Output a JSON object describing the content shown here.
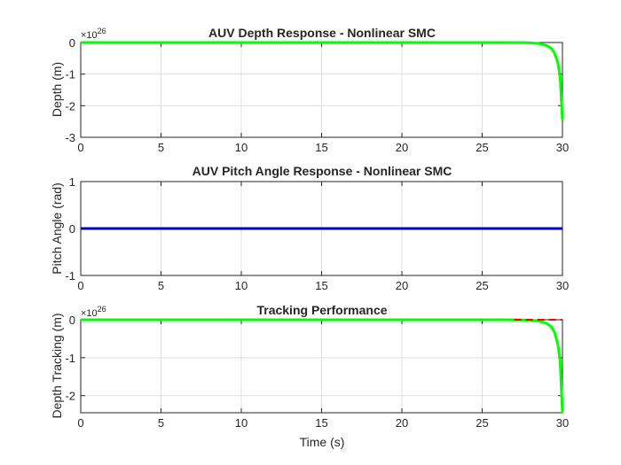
{
  "chart_data": [
    {
      "type": "line",
      "title": "AUV Depth Response - Nonlinear SMC",
      "xlabel": "",
      "ylabel": "Depth (m)",
      "y_exponent_label": "×10",
      "y_exponent": "26",
      "xlim": [
        0,
        30
      ],
      "ylim": [
        -3,
        0
      ],
      "xticks": [
        0,
        5,
        10,
        15,
        20,
        25,
        30
      ],
      "yticks": [
        0,
        -1,
        -2,
        -3
      ],
      "grid": true,
      "series": [
        {
          "color": "#00ff00",
          "x": [
            0,
            20,
            26,
            27,
            27.5,
            28,
            28.5,
            29,
            29.3,
            29.5,
            29.7,
            29.85,
            30
          ],
          "y": [
            0,
            0,
            -0.0003,
            -0.0015,
            -0.004,
            -0.011,
            -0.03,
            -0.09,
            -0.18,
            -0.32,
            -0.62,
            -1.05,
            -2.45
          ]
        }
      ]
    },
    {
      "type": "line",
      "title": "AUV Pitch Angle Response - Nonlinear SMC",
      "xlabel": "",
      "ylabel": "Pitch Angle (rad)",
      "xlim": [
        0,
        30
      ],
      "ylim": [
        -1,
        1
      ],
      "xticks": [
        0,
        5,
        10,
        15,
        20,
        25,
        30
      ],
      "yticks": [
        1,
        0,
        -1
      ],
      "grid": true,
      "series": [
        {
          "color": "#0000cc",
          "x": [
            0,
            30
          ],
          "y": [
            0,
            0
          ]
        }
      ]
    },
    {
      "type": "line",
      "title": "Tracking Performance",
      "xlabel": "Time (s)",
      "ylabel": "Depth Tracking (m)",
      "y_exponent_label": "×10",
      "y_exponent": "26",
      "xlim": [
        0,
        30
      ],
      "ylim": [
        -2.45,
        0
      ],
      "xticks": [
        0,
        5,
        10,
        15,
        20,
        25,
        30
      ],
      "yticks": [
        0,
        -1,
        -2
      ],
      "grid": true,
      "series": [
        {
          "color": "#00ff00",
          "x": [
            0,
            20,
            26,
            27,
            27.5,
            28,
            28.5,
            29,
            29.3,
            29.5,
            29.7,
            29.85,
            30
          ],
          "y": [
            0,
            0,
            -0.0003,
            -0.0015,
            -0.004,
            -0.011,
            -0.03,
            -0.09,
            -0.18,
            -0.32,
            -0.62,
            -1.05,
            -2.45
          ]
        },
        {
          "color": "#ff0000",
          "dashed": true,
          "x": [
            27,
            30
          ],
          "y": [
            0,
            0
          ]
        }
      ]
    }
  ]
}
